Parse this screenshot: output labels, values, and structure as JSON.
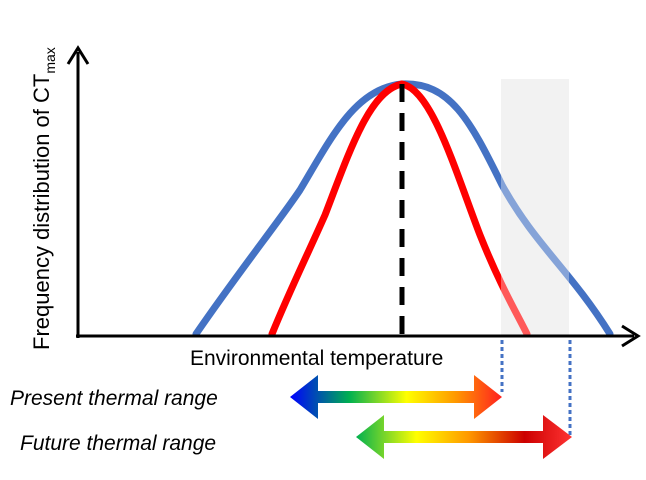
{
  "diagram": {
    "y_axis_label": "Frequency distribution of CT",
    "y_axis_label_subscript": "max",
    "x_axis_label": "Environmental temperature",
    "present_range_label": "Present thermal range",
    "future_range_label": "Future thermal range"
  },
  "colors": {
    "broad_curve": "#4472c4",
    "narrow_curve": "#ff0000",
    "highlight_band": "#ebebeb",
    "axis": "#000000",
    "dotted_guides": "#4472c4",
    "gradient_stops": [
      "#0000ff",
      "#00aa44",
      "#ffff00",
      "#ff8800",
      "#ff0000"
    ]
  }
}
